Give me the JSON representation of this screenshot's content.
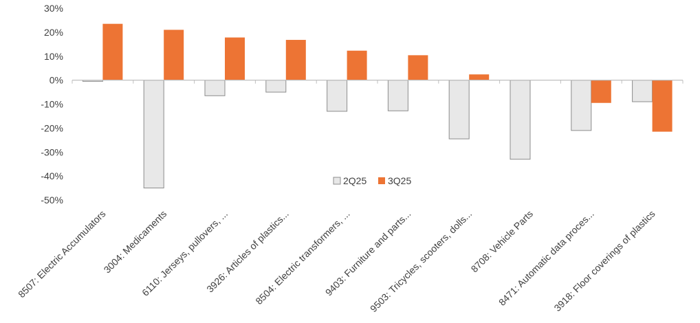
{
  "chart_data": {
    "type": "bar",
    "title": "",
    "xlabel": "",
    "ylabel": "",
    "ylim": [
      -0.5,
      0.3
    ],
    "yticks": [
      0.3,
      0.2,
      0.1,
      0,
      -0.1,
      -0.2,
      -0.3,
      -0.4,
      -0.5
    ],
    "ytick_labels": [
      "30%",
      "20%",
      "10%",
      "0%",
      "-10%",
      "-20%",
      "-30%",
      "-40%",
      "-50%"
    ],
    "grid": false,
    "legend": "center",
    "categories": [
      "8507: Electric Accumulators",
      "3004: Medicaments",
      "6110: Jerseys, pullovers, ...",
      "3926: Articles of plastics...",
      "8504: Electric transformers, ...",
      "9403: Furniture and parts...",
      "9503: Tricycles, scooters, dolls...",
      "8708: Vehicle Parts",
      "8471: Automatic data proces...",
      "3918: Floor coverings of plastics"
    ],
    "series": [
      {
        "name": "2Q25",
        "color": "#e8e8e8",
        "stroke": "#8c8c8c",
        "values": [
          -0.005,
          -0.45,
          -0.065,
          -0.05,
          -0.13,
          -0.128,
          -0.245,
          -0.33,
          -0.21,
          -0.09
        ]
      },
      {
        "name": "3Q25",
        "color": "#ed7434",
        "stroke": "#ed7434",
        "values": [
          0.235,
          0.21,
          0.178,
          0.168,
          0.123,
          0.104,
          0.024,
          null,
          -0.095,
          -0.215
        ]
      }
    ]
  }
}
